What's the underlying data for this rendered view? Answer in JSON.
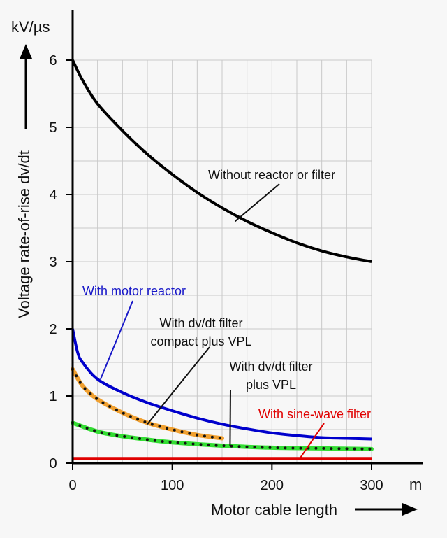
{
  "chart_data": {
    "type": "line",
    "xlabel": "Motor cable length",
    "xunit": "m",
    "ylabel": "Voltage rate-of-rise dv/dt",
    "yunit": "kV/µs",
    "xlim": [
      0,
      300
    ],
    "ylim": [
      0,
      6
    ],
    "xticks": [
      "0",
      "100",
      "200",
      "300"
    ],
    "yticks": [
      "0",
      "1",
      "2",
      "3",
      "4",
      "5",
      "6"
    ],
    "grid": true,
    "series": [
      {
        "name": "Without reactor or filter",
        "color": "#000000",
        "style": "solid",
        "x": [
          0,
          10,
          25,
          50,
          75,
          100,
          125,
          150,
          175,
          200,
          225,
          250,
          275,
          300
        ],
        "y": [
          6.0,
          5.7,
          5.35,
          4.95,
          4.6,
          4.3,
          4.03,
          3.8,
          3.6,
          3.43,
          3.28,
          3.16,
          3.07,
          3.0
        ]
      },
      {
        "name": "With motor reactor",
        "color": "#0000cc",
        "style": "solid",
        "x": [
          0,
          5,
          10,
          25,
          50,
          75,
          100,
          125,
          150,
          175,
          200,
          225,
          250,
          275,
          300
        ],
        "y": [
          2.0,
          1.65,
          1.5,
          1.25,
          1.05,
          0.9,
          0.78,
          0.67,
          0.58,
          0.51,
          0.45,
          0.41,
          0.38,
          0.37,
          0.36
        ]
      },
      {
        "name": "With dv/dt filter compact plus VPL",
        "color": "#f0a030",
        "style": "dotted-band",
        "x": [
          0,
          10,
          25,
          50,
          75,
          100,
          125,
          150
        ],
        "y": [
          1.4,
          1.15,
          0.95,
          0.75,
          0.6,
          0.5,
          0.42,
          0.37
        ]
      },
      {
        "name": "With dv/dt filter plus VPL",
        "color": "#33dd33",
        "style": "dotted-band",
        "x": [
          0,
          25,
          50,
          75,
          100,
          150,
          200,
          250,
          300
        ],
        "y": [
          0.6,
          0.47,
          0.4,
          0.35,
          0.31,
          0.26,
          0.23,
          0.22,
          0.21
        ]
      },
      {
        "name": "With sine-wave filter",
        "color": "#e00000",
        "style": "solid",
        "x": [
          0,
          300
        ],
        "y": [
          0.07,
          0.07
        ]
      }
    ],
    "annotations": [
      {
        "lines": [
          "Without reactor or filter"
        ],
        "color": "#111111",
        "point": [
          163,
          3.6
        ]
      },
      {
        "lines": [
          "With motor reactor"
        ],
        "color": "#1818c8",
        "point": [
          28,
          1.25
        ]
      },
      {
        "lines": [
          "With dv/dt filter",
          "compact plus VPL"
        ],
        "color": "#111111",
        "point": [
          75,
          0.58
        ]
      },
      {
        "lines": [
          "With dv/dt filter",
          "plus VPL"
        ],
        "color": "#111111",
        "point": [
          158,
          0.26
        ]
      },
      {
        "lines": [
          "With sine-wave filter"
        ],
        "color": "#e00000",
        "point": [
          228,
          0.07
        ]
      }
    ]
  }
}
